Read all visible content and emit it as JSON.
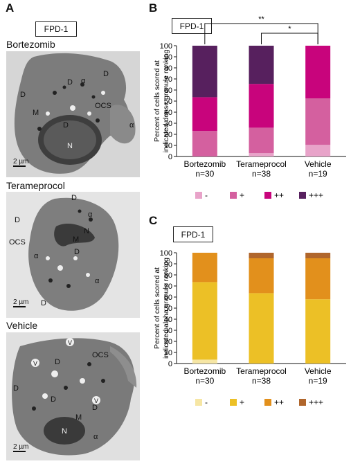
{
  "panel_a": {
    "letter": "A",
    "title_box": "FPD-1",
    "micrographs": [
      {
        "condition": "Bortezomib",
        "scale_bar": "2 µm",
        "annotations": [
          "D",
          "D",
          "D",
          "D",
          "M",
          "OCS",
          "α",
          "α",
          "N"
        ]
      },
      {
        "condition": "Terameprocol",
        "scale_bar": "2 µm",
        "annotations": [
          "D",
          "D",
          "D",
          "D",
          "M",
          "OCS",
          "α",
          "α",
          "α",
          "N"
        ]
      },
      {
        "condition": "Vehicle",
        "scale_bar": "2 µm",
        "annotations": [
          "D",
          "D",
          "D",
          "D",
          "M",
          "OCS",
          "α",
          "V",
          "V",
          "V",
          "N"
        ]
      }
    ]
  },
  "panel_b": {
    "letter": "B",
    "title_box": "FPD-1",
    "sig_double": "**",
    "sig_single": "*"
  },
  "panel_c": {
    "letter": "C",
    "title_box": "FPD-1"
  },
  "chart_data": [
    {
      "type": "bar",
      "stacked": true,
      "ylabel": "Percent of cells scored at indicated dense granule ranking",
      "ylim": [
        0,
        100
      ],
      "yticks": [
        0,
        10,
        20,
        30,
        40,
        50,
        60,
        70,
        80,
        90,
        100
      ],
      "categories": [
        "Bortezomib",
        "Terameprocol",
        "Vehicle"
      ],
      "category_n": [
        "n=30",
        "n=38",
        "n=19"
      ],
      "legend_position": "bottom",
      "series": [
        {
          "name": "-",
          "color": "#e8a3c9",
          "values": [
            0,
            3,
            10.5
          ]
        },
        {
          "name": "+",
          "color": "#d4609f",
          "values": [
            23,
            23,
            42
          ]
        },
        {
          "name": "++",
          "color": "#c8047c",
          "values": [
            30.5,
            39.5,
            47.5
          ]
        },
        {
          "name": "+++",
          "color": "#57205e",
          "values": [
            46.5,
            34.5,
            0
          ]
        }
      ],
      "significance": [
        {
          "from": "Bortezomib",
          "to": "Vehicle",
          "label": "**"
        },
        {
          "from": "Terameprocol",
          "to": "Vehicle",
          "label": "*"
        }
      ]
    },
    {
      "type": "bar",
      "stacked": true,
      "ylabel": "Percent of cells scored at indicated alpha granule ranking",
      "ylim": [
        0,
        100
      ],
      "yticks": [
        0,
        10,
        20,
        30,
        40,
        50,
        60,
        70,
        80,
        90,
        100
      ],
      "categories": [
        "Bortezomib",
        "Terameprocol",
        "Vehicle"
      ],
      "category_n": [
        "n=30",
        "n=38",
        "n=19"
      ],
      "legend_position": "bottom",
      "series": [
        {
          "name": "-",
          "color": "#f6e6a4",
          "values": [
            3.5,
            0,
            0
          ]
        },
        {
          "name": "+",
          "color": "#ecc026",
          "values": [
            70,
            63.5,
            58
          ]
        },
        {
          "name": "++",
          "color": "#e2901c",
          "values": [
            26.5,
            31.5,
            37
          ]
        },
        {
          "name": "+++",
          "color": "#b0662c",
          "values": [
            0,
            5,
            5
          ]
        }
      ]
    }
  ]
}
